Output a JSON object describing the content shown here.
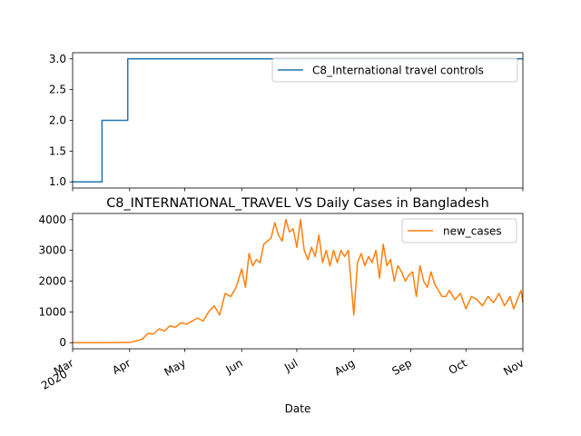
{
  "chart_data": [
    {
      "type": "line",
      "title": "",
      "ylim": [
        0.9,
        3.1
      ],
      "yticks": [
        "1.0",
        "1.5",
        "2.0",
        "2.5",
        "3.0"
      ],
      "ytick_values": [
        1.0,
        1.5,
        2.0,
        2.5,
        3.0
      ],
      "legend_position": "upper-right",
      "color": "#1f77b4",
      "series": [
        {
          "name": "C8_International travel controls",
          "x": [
            "2020-03-01",
            "2020-03-17",
            "2020-03-17",
            "2020-03-31",
            "2020-03-31",
            "2020-11-01"
          ],
          "values": [
            1,
            1,
            2,
            2,
            3,
            3
          ]
        }
      ]
    },
    {
      "type": "line",
      "title": "C8_INTERNATIONAL_TRAVEL VS Daily Cases in Bangladesh",
      "xlabel": "Date",
      "ylim": [
        -200,
        4200
      ],
      "yticks": [
        "0",
        "1000",
        "2000",
        "3000",
        "4000"
      ],
      "ytick_values": [
        0,
        1000,
        2000,
        3000,
        4000
      ],
      "xticks": [
        {
          "date": "2020-03-01",
          "label": "Mar",
          "sublabel": "2020"
        },
        {
          "date": "2020-04-01",
          "label": "Apr"
        },
        {
          "date": "2020-05-01",
          "label": "May"
        },
        {
          "date": "2020-06-01",
          "label": "Jun"
        },
        {
          "date": "2020-07-01",
          "label": "Jul"
        },
        {
          "date": "2020-08-01",
          "label": "Aug"
        },
        {
          "date": "2020-09-01",
          "label": "Sep"
        },
        {
          "date": "2020-10-01",
          "label": "Oct"
        },
        {
          "date": "2020-11-01",
          "label": "Nov"
        }
      ],
      "legend_position": "upper-right",
      "color": "#ff7f0e",
      "series": [
        {
          "name": "new_cases",
          "x": [
            "2020-03-01",
            "2020-03-15",
            "2020-04-01",
            "2020-04-05",
            "2020-04-08",
            "2020-04-11",
            "2020-04-14",
            "2020-04-17",
            "2020-04-20",
            "2020-04-23",
            "2020-04-26",
            "2020-04-29",
            "2020-05-02",
            "2020-05-05",
            "2020-05-08",
            "2020-05-11",
            "2020-05-14",
            "2020-05-17",
            "2020-05-20",
            "2020-05-23",
            "2020-05-26",
            "2020-05-29",
            "2020-06-01",
            "2020-06-03",
            "2020-06-05",
            "2020-06-07",
            "2020-06-09",
            "2020-06-11",
            "2020-06-13",
            "2020-06-15",
            "2020-06-17",
            "2020-06-19",
            "2020-06-21",
            "2020-06-23",
            "2020-06-25",
            "2020-06-27",
            "2020-06-29",
            "2020-07-01",
            "2020-07-03",
            "2020-07-05",
            "2020-07-07",
            "2020-07-09",
            "2020-07-11",
            "2020-07-13",
            "2020-07-15",
            "2020-07-17",
            "2020-07-19",
            "2020-07-21",
            "2020-07-23",
            "2020-07-25",
            "2020-07-27",
            "2020-07-29",
            "2020-08-01",
            "2020-08-03",
            "2020-08-05",
            "2020-08-07",
            "2020-08-09",
            "2020-08-11",
            "2020-08-13",
            "2020-08-15",
            "2020-08-17",
            "2020-08-19",
            "2020-08-21",
            "2020-08-23",
            "2020-08-25",
            "2020-08-27",
            "2020-08-29",
            "2020-08-31",
            "2020-09-02",
            "2020-09-04",
            "2020-09-06",
            "2020-09-08",
            "2020-09-10",
            "2020-09-12",
            "2020-09-14",
            "2020-09-16",
            "2020-09-18",
            "2020-09-20",
            "2020-09-22",
            "2020-09-25",
            "2020-09-28",
            "2020-10-01",
            "2020-10-04",
            "2020-10-07",
            "2020-10-10",
            "2020-10-13",
            "2020-10-16",
            "2020-10-19",
            "2020-10-22",
            "2020-10-25",
            "2020-10-27",
            "2020-10-29",
            "2020-10-31",
            "2020-11-01"
          ],
          "values": [
            0,
            0,
            5,
            60,
            120,
            300,
            280,
            450,
            380,
            550,
            500,
            650,
            600,
            700,
            800,
            700,
            1000,
            1200,
            900,
            1600,
            1500,
            1800,
            2400,
            1800,
            2900,
            2500,
            2700,
            2600,
            3200,
            3300,
            3400,
            3900,
            3500,
            3300,
            4000,
            3600,
            3700,
            3100,
            4000,
            3000,
            2700,
            3100,
            2800,
            3500,
            2600,
            3000,
            2500,
            3000,
            2600,
            3000,
            2800,
            3000,
            900,
            2600,
            2900,
            2500,
            2800,
            2600,
            3000,
            2100,
            3200,
            2500,
            2700,
            2000,
            2500,
            2300,
            2000,
            2200,
            2300,
            1500,
            2500,
            2000,
            1800,
            2300,
            1900,
            1700,
            1500,
            1500,
            1700,
            1400,
            1600,
            1100,
            1500,
            1400,
            1200,
            1500,
            1300,
            1600,
            1200,
            1500,
            1100,
            1400,
            1700,
            1300
          ]
        }
      ]
    }
  ]
}
